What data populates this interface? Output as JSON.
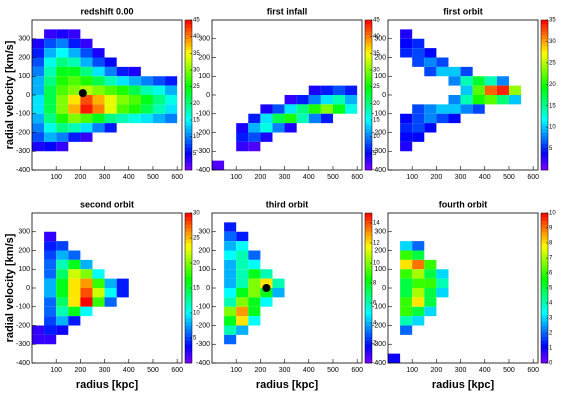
{
  "chart_data": [
    {
      "type": "hist2d",
      "title": "redshift 0.00",
      "ylabel": "radial velocity [km/s]",
      "xlim": [
        0,
        620
      ],
      "ylim": [
        -400,
        400
      ],
      "xticks": [
        100,
        200,
        300,
        400,
        500,
        600
      ],
      "yticks": [
        -400,
        -300,
        -200,
        -100,
        0,
        100,
        200,
        300
      ],
      "clim": [
        0,
        45
      ],
      "cticks": [
        5,
        10,
        15,
        20,
        25,
        30,
        35,
        40,
        45
      ],
      "xbin": 50,
      "ybin": 50,
      "marker": {
        "x": 210,
        "y": 10
      },
      "rows": [
        {
          "y": 325,
          "x0": 75,
          "counts": [
            3,
            4,
            3
          ]
        },
        {
          "y": 275,
          "x0": 25,
          "counts": [
            4,
            8,
            10,
            6,
            3
          ]
        },
        {
          "y": 225,
          "x0": 25,
          "counts": [
            6,
            12,
            15,
            12,
            8,
            4
          ]
        },
        {
          "y": 175,
          "x0": 25,
          "counts": [
            8,
            16,
            20,
            18,
            12,
            8,
            5
          ]
        },
        {
          "y": 125,
          "x0": 25,
          "counts": [
            10,
            18,
            24,
            24,
            20,
            14,
            10,
            6,
            4
          ]
        },
        {
          "y": 75,
          "x0": 25,
          "counts": [
            12,
            20,
            26,
            28,
            26,
            22,
            18,
            14,
            12,
            10,
            8,
            6
          ]
        },
        {
          "y": 25,
          "x0": 25,
          "counts": [
            12,
            22,
            28,
            30,
            32,
            30,
            28,
            26,
            22,
            18,
            16,
            12
          ]
        },
        {
          "y": -25,
          "x0": 25,
          "counts": [
            14,
            22,
            30,
            36,
            42,
            38,
            34,
            30,
            28,
            24,
            20,
            16
          ]
        },
        {
          "y": -75,
          "x0": 25,
          "counts": [
            14,
            22,
            30,
            38,
            44,
            40,
            34,
            28,
            26,
            22,
            18,
            14
          ]
        },
        {
          "y": -125,
          "x0": 25,
          "counts": [
            12,
            20,
            26,
            30,
            28,
            24,
            20,
            18,
            16,
            14,
            12,
            10
          ]
        },
        {
          "y": -175,
          "x0": 25,
          "counts": [
            10,
            16,
            20,
            18,
            14,
            10,
            6
          ]
        },
        {
          "y": -225,
          "x0": 25,
          "counts": [
            8,
            12,
            10,
            6,
            3
          ]
        },
        {
          "y": -275,
          "x0": 25,
          "counts": [
            4,
            5,
            3
          ]
        }
      ]
    },
    {
      "type": "hist2d",
      "title": "first infall",
      "xlim": [
        0,
        620
      ],
      "ylim": [
        -400,
        400
      ],
      "xticks": [
        100,
        200,
        300,
        400,
        500,
        600
      ],
      "yticks": [
        -400,
        -300,
        -200,
        -100,
        0,
        100,
        200,
        300
      ],
      "clim": [
        0,
        45
      ],
      "cticks": [
        5,
        10,
        15,
        20,
        25,
        30,
        35,
        40,
        45
      ],
      "xbin": 50,
      "ybin": 50,
      "rows": [
        {
          "y": 25,
          "x0": 425,
          "counts": [
            4,
            6,
            8,
            6
          ]
        },
        {
          "y": -25,
          "x0": 325,
          "counts": [
            3,
            6,
            10,
            14,
            18,
            12
          ]
        },
        {
          "y": -75,
          "x0": 225,
          "counts": [
            4,
            8,
            14,
            20,
            26,
            30,
            24,
            16
          ]
        },
        {
          "y": -125,
          "x0": 175,
          "counts": [
            6,
            14,
            22,
            26,
            18,
            10,
            6
          ]
        },
        {
          "y": -175,
          "x0": 125,
          "counts": [
            4,
            12,
            16,
            10,
            4
          ]
        },
        {
          "y": -225,
          "x0": 125,
          "counts": [
            6,
            8,
            4
          ]
        },
        {
          "y": -275,
          "x0": 125,
          "counts": [
            3,
            2
          ]
        },
        {
          "y": -375,
          "x0": 25,
          "counts": [
            2
          ]
        }
      ]
    },
    {
      "type": "hist2d",
      "title": "first orbit",
      "xlim": [
        0,
        620
      ],
      "ylim": [
        -400,
        400
      ],
      "xticks": [
        100,
        200,
        300,
        400,
        500,
        600
      ],
      "yticks": [
        -400,
        -300,
        -200,
        -100,
        0,
        100,
        200,
        300
      ],
      "clim": [
        0,
        35
      ],
      "cticks": [
        5,
        10,
        15,
        20,
        25,
        30,
        35
      ],
      "xbin": 50,
      "ybin": 50,
      "rows": [
        {
          "y": 325,
          "x0": 75,
          "counts": [
            3
          ]
        },
        {
          "y": 275,
          "x0": 75,
          "counts": [
            4,
            5
          ]
        },
        {
          "y": 225,
          "x0": 75,
          "counts": [
            5,
            6,
            4
          ]
        },
        {
          "y": 175,
          "x0": 125,
          "counts": [
            6,
            8,
            6
          ]
        },
        {
          "y": 125,
          "x0": 175,
          "counts": [
            6,
            10,
            10,
            6
          ]
        },
        {
          "y": 75,
          "x0": 275,
          "counts": [
            8,
            14,
            18,
            14,
            8
          ]
        },
        {
          "y": 25,
          "x0": 325,
          "counts": [
            10,
            22,
            32,
            34,
            24
          ]
        },
        {
          "y": -25,
          "x0": 275,
          "counts": [
            8,
            14,
            20,
            22,
            16,
            10
          ]
        },
        {
          "y": -75,
          "x0": 125,
          "counts": [
            6,
            8,
            10,
            10,
            8,
            6
          ]
        },
        {
          "y": -125,
          "x0": 75,
          "counts": [
            4,
            6,
            8,
            6,
            4
          ]
        },
        {
          "y": -175,
          "x0": 75,
          "counts": [
            5,
            6,
            4
          ]
        },
        {
          "y": -225,
          "x0": 75,
          "counts": [
            4,
            4
          ]
        },
        {
          "y": -275,
          "x0": 75,
          "counts": [
            3
          ]
        }
      ]
    },
    {
      "type": "hist2d",
      "title": "second orbit",
      "ylabel": "radial velocity [km/s]",
      "xlabel": "radius [kpc]",
      "xlim": [
        0,
        620
      ],
      "ylim": [
        -400,
        400
      ],
      "xticks": [
        100,
        200,
        300,
        400,
        500,
        600
      ],
      "yticks": [
        -400,
        -300,
        -200,
        -100,
        0,
        100,
        200,
        300
      ],
      "clim": [
        0,
        30
      ],
      "cticks": [
        5,
        10,
        15,
        20,
        25,
        30
      ],
      "xbin": 50,
      "ybin": 50,
      "rows": [
        {
          "y": 275,
          "x0": 75,
          "counts": [
            2
          ]
        },
        {
          "y": 225,
          "x0": 75,
          "counts": [
            4,
            5
          ]
        },
        {
          "y": 175,
          "x0": 75,
          "counts": [
            5,
            8,
            6
          ]
        },
        {
          "y": 125,
          "x0": 75,
          "counts": [
            6,
            12,
            16,
            8
          ]
        },
        {
          "y": 75,
          "x0": 75,
          "counts": [
            6,
            14,
            22,
            20,
            10
          ]
        },
        {
          "y": 25,
          "x0": 75,
          "counts": [
            8,
            16,
            24,
            26,
            18,
            8,
            4
          ]
        },
        {
          "y": -25,
          "x0": 75,
          "counts": [
            8,
            16,
            24,
            28,
            22,
            10,
            4
          ]
        },
        {
          "y": -75,
          "x0": 75,
          "counts": [
            6,
            14,
            24,
            30,
            18,
            6
          ]
        },
        {
          "y": -125,
          "x0": 75,
          "counts": [
            6,
            12,
            16,
            10
          ]
        },
        {
          "y": -175,
          "x0": 75,
          "counts": [
            5,
            8,
            4
          ]
        },
        {
          "y": -225,
          "x0": 25,
          "counts": [
            2,
            4,
            3
          ]
        },
        {
          "y": -275,
          "x0": 25,
          "counts": [
            2,
            2
          ]
        }
      ]
    },
    {
      "type": "hist2d",
      "title": "third orbit",
      "xlabel": "radius [kpc]",
      "xlim": [
        0,
        620
      ],
      "ylim": [
        -400,
        400
      ],
      "xticks": [
        100,
        200,
        300,
        400,
        500,
        600
      ],
      "yticks": [
        -400,
        -300,
        -200,
        -100,
        0,
        100,
        200,
        300
      ],
      "clim": [
        0,
        15
      ],
      "cticks": [
        2,
        4,
        6,
        8,
        10,
        12,
        14
      ],
      "xbin": 50,
      "ybin": 50,
      "marker": {
        "x": 225,
        "y": 0
      },
      "rows": [
        {
          "y": 325,
          "x0": 75,
          "counts": [
            2
          ]
        },
        {
          "y": 275,
          "x0": 75,
          "counts": [
            3,
            2
          ]
        },
        {
          "y": 225,
          "x0": 75,
          "counts": [
            4,
            5
          ]
        },
        {
          "y": 175,
          "x0": 75,
          "counts": [
            5,
            6,
            3
          ]
        },
        {
          "y": 125,
          "x0": 75,
          "counts": [
            4,
            6,
            5
          ]
        },
        {
          "y": 75,
          "x0": 75,
          "counts": [
            4,
            6,
            8,
            6
          ]
        },
        {
          "y": 25,
          "x0": 75,
          "counts": [
            4,
            6,
            10,
            12,
            6
          ]
        },
        {
          "y": -25,
          "x0": 75,
          "counts": [
            5,
            8,
            10,
            8,
            4
          ]
        },
        {
          "y": -75,
          "x0": 75,
          "counts": [
            6,
            10,
            8,
            5
          ]
        },
        {
          "y": -125,
          "x0": 75,
          "counts": [
            10,
            13,
            8
          ]
        },
        {
          "y": -175,
          "x0": 75,
          "counts": [
            8,
            12,
            5
          ]
        },
        {
          "y": -225,
          "x0": 75,
          "counts": [
            6,
            4
          ]
        },
        {
          "y": -275,
          "x0": 75,
          "counts": [
            3
          ]
        }
      ]
    },
    {
      "type": "hist2d",
      "title": "fourth orbit",
      "xlabel": "radius [kpc]",
      "xlim": [
        0,
        620
      ],
      "ylim": [
        -400,
        400
      ],
      "xticks": [
        100,
        200,
        300,
        400,
        500,
        600
      ],
      "yticks": [
        -400,
        -300,
        -200,
        -100,
        0,
        100,
        200,
        300
      ],
      "clim": [
        0,
        10
      ],
      "cticks": [
        0,
        1,
        2,
        3,
        4,
        5,
        6,
        7,
        8,
        9,
        10
      ],
      "xbin": 50,
      "ybin": 50,
      "rows": [
        {
          "y": 225,
          "x0": 75,
          "counts": [
            3,
            2
          ]
        },
        {
          "y": 175,
          "x0": 75,
          "counts": [
            6,
            5
          ]
        },
        {
          "y": 125,
          "x0": 75,
          "counts": [
            8,
            9,
            6
          ]
        },
        {
          "y": 75,
          "x0": 75,
          "counts": [
            6,
            7,
            5,
            3
          ]
        },
        {
          "y": 25,
          "x0": 75,
          "counts": [
            5,
            6,
            6,
            4
          ]
        },
        {
          "y": -25,
          "x0": 75,
          "counts": [
            5,
            7,
            5,
            3
          ]
        },
        {
          "y": -75,
          "x0": 75,
          "counts": [
            6,
            8,
            5
          ]
        },
        {
          "y": -125,
          "x0": 75,
          "counts": [
            6,
            5,
            3
          ]
        },
        {
          "y": -175,
          "x0": 75,
          "counts": [
            4,
            3
          ]
        },
        {
          "y": -225,
          "x0": 75,
          "counts": [
            2
          ]
        },
        {
          "y": -375,
          "x0": 25,
          "counts": [
            1
          ]
        }
      ]
    }
  ]
}
